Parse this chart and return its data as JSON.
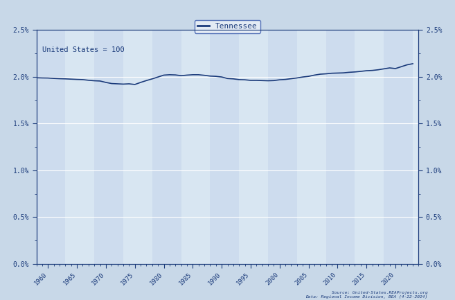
{
  "title": "Tennessee",
  "annotation": "United States = 100",
  "source_line1": "Source: United-States.REAProjects.org",
  "source_line2": "Data: Regional Income Division, BEA (4-22-2024)",
  "line_color": "#1a3a7a",
  "background_color": "#c8d8e8",
  "plot_bg_color": "#dce8f4",
  "ylim": [
    0.0,
    0.025
  ],
  "xlim": [
    1958,
    2024
  ],
  "years": [
    1958,
    1959,
    1960,
    1961,
    1962,
    1963,
    1964,
    1965,
    1966,
    1967,
    1968,
    1969,
    1970,
    1971,
    1972,
    1973,
    1974,
    1975,
    1976,
    1977,
    1978,
    1979,
    1980,
    1981,
    1982,
    1983,
    1984,
    1985,
    1986,
    1987,
    1988,
    1989,
    1990,
    1991,
    1992,
    1993,
    1994,
    1995,
    1996,
    1997,
    1998,
    1999,
    2000,
    2001,
    2002,
    2003,
    2004,
    2005,
    2006,
    2007,
    2008,
    2009,
    2010,
    2011,
    2012,
    2013,
    2014,
    2015,
    2016,
    2017,
    2018,
    2019,
    2020,
    2021,
    2022,
    2023
  ],
  "values": [
    0.0199,
    0.01988,
    0.01987,
    0.01983,
    0.0198,
    0.01978,
    0.01975,
    0.01972,
    0.0197,
    0.01963,
    0.01958,
    0.01955,
    0.0194,
    0.01928,
    0.01925,
    0.01922,
    0.01925,
    0.01918,
    0.0194,
    0.0196,
    0.01978,
    0.01998,
    0.02018,
    0.02022,
    0.0202,
    0.02012,
    0.02018,
    0.02022,
    0.02022,
    0.02016,
    0.02008,
    0.02005,
    0.01998,
    0.01982,
    0.01978,
    0.0197,
    0.01968,
    0.01962,
    0.01962,
    0.0196,
    0.01958,
    0.0196,
    0.01968,
    0.01972,
    0.0198,
    0.01988,
    0.01998,
    0.02005,
    0.02018,
    0.02028,
    0.02032,
    0.02038,
    0.0204,
    0.02042,
    0.02048,
    0.02052,
    0.02058,
    0.02065,
    0.02068,
    0.02075,
    0.02085,
    0.02095,
    0.02088,
    0.02108,
    0.02128,
    0.0214
  ],
  "yticks": [
    0.0,
    0.005,
    0.01,
    0.015,
    0.02,
    0.025
  ],
  "ytick_labels": [
    "0.0%",
    "0.5%",
    "1.0%",
    "1.5%",
    "2.0%",
    "2.5%"
  ],
  "xticks": [
    1960,
    1965,
    1970,
    1975,
    1980,
    1985,
    1990,
    1995,
    2000,
    2005,
    2010,
    2015,
    2020
  ],
  "legend_box_color": "#eaf0f8",
  "legend_border_color": "#3355aa",
  "stripe_colors": [
    "#cddcee",
    "#d8e6f2"
  ],
  "grid_color": "#ffffff",
  "minor_ytick_interval": 0.001
}
